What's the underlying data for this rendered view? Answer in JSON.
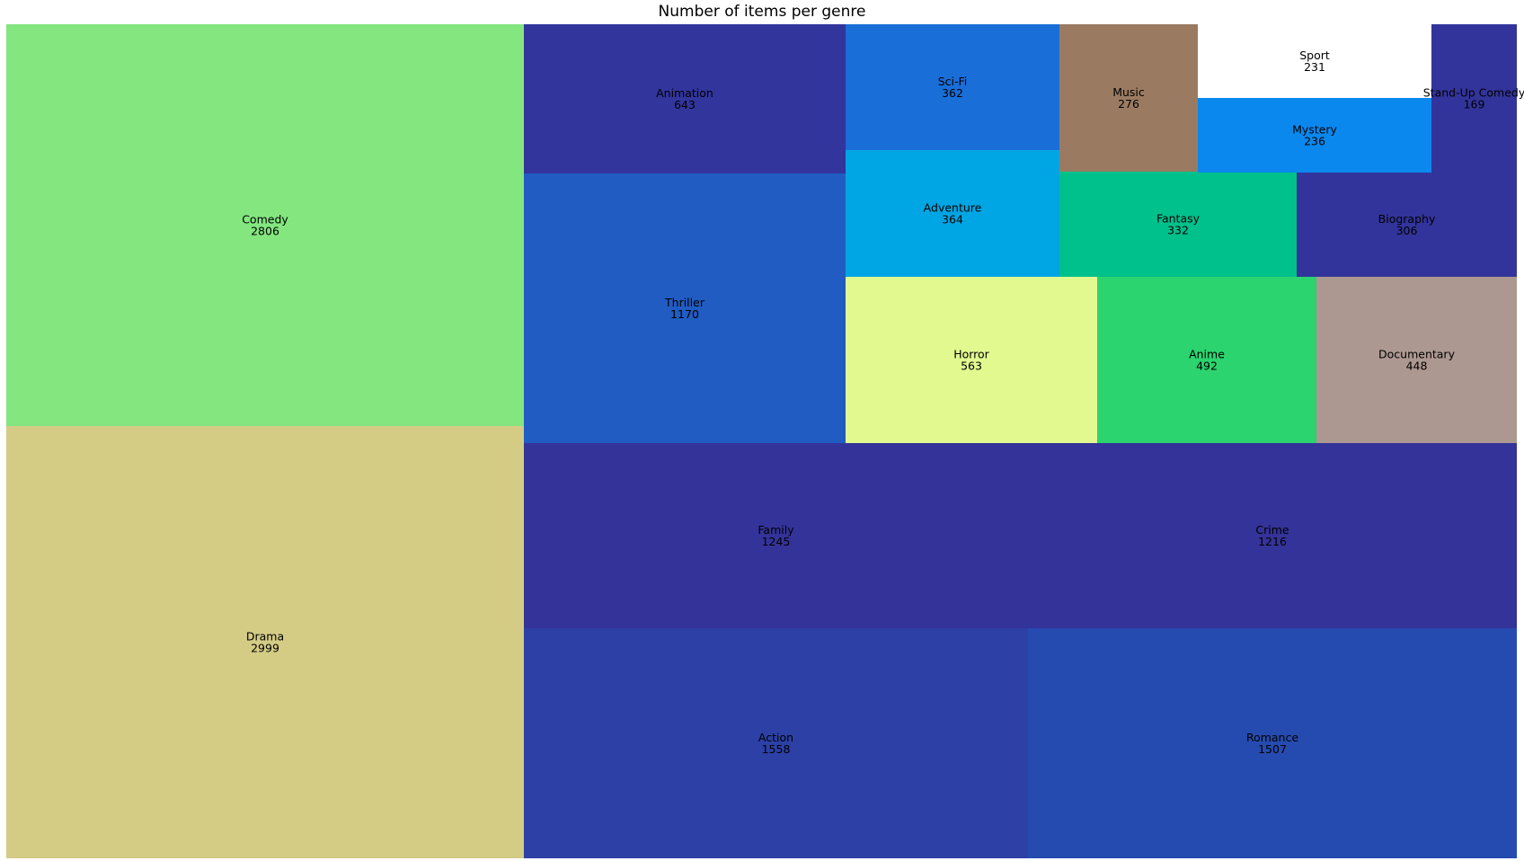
{
  "chart_data": {
    "type": "treemap",
    "title": "Number of items per genre",
    "items": [
      {
        "label": "Comedy",
        "value": 2806,
        "color": "#83e67f"
      },
      {
        "label": "Drama",
        "value": 2999,
        "color": "#d4cb85"
      },
      {
        "label": "Animation",
        "value": 643,
        "color": "#31359c"
      },
      {
        "label": "Thriller",
        "value": 1170,
        "color": "#205cc2"
      },
      {
        "label": "Sci-Fi",
        "value": 362,
        "color": "#196ed8"
      },
      {
        "label": "Adventure",
        "value": 364,
        "color": "#00a5e3"
      },
      {
        "label": "Music",
        "value": 276,
        "color": "#9a7b61"
      },
      {
        "label": "Fantasy",
        "value": 332,
        "color": "#00c08c"
      },
      {
        "label": "Sport",
        "value": 231,
        "color": "#ffffff"
      },
      {
        "label": "Mystery",
        "value": 236,
        "color": "#0a88ee"
      },
      {
        "label": "Stand-Up Comedy",
        "value": 169,
        "color": "#32349b"
      },
      {
        "label": "Biography",
        "value": 306,
        "color": "#32349b"
      },
      {
        "label": "Horror",
        "value": 563,
        "color": "#e1f98f"
      },
      {
        "label": "Anime",
        "value": 492,
        "color": "#2bd46e"
      },
      {
        "label": "Documentary",
        "value": 448,
        "color": "#ad9891"
      },
      {
        "label": "Family",
        "value": 1245,
        "color": "#343399"
      },
      {
        "label": "Crime",
        "value": 1216,
        "color": "#343399"
      },
      {
        "label": "Action",
        "value": 1558,
        "color": "#2c40a6"
      },
      {
        "label": "Romance",
        "value": 1507,
        "color": "#264bb0"
      }
    ]
  }
}
